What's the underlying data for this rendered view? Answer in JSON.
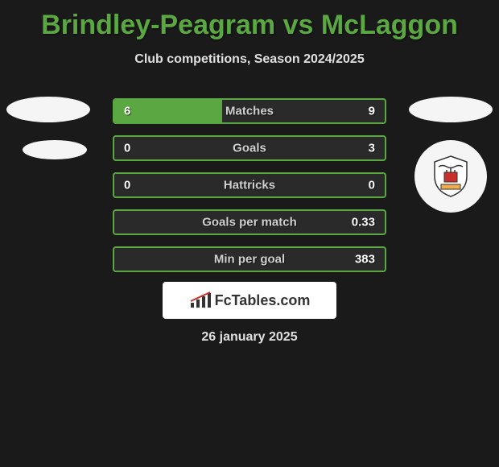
{
  "header": {
    "player1": "Brindley-Peagram",
    "player2": "McLaggon",
    "vs": "vs",
    "subtitle": "Club competitions, Season 2024/2025"
  },
  "stats": [
    {
      "label": "Matches",
      "left_value": "6",
      "right_value": "9",
      "left_pct": 40,
      "right_pct": 0
    },
    {
      "label": "Goals",
      "left_value": "0",
      "right_value": "3",
      "left_pct": 0,
      "right_pct": 0
    },
    {
      "label": "Hattricks",
      "left_value": "0",
      "right_value": "0",
      "left_pct": 0,
      "right_pct": 0
    },
    {
      "label": "Goals per match",
      "left_value": "",
      "right_value": "0.33",
      "left_pct": 0,
      "right_pct": 0
    },
    {
      "label": "Min per goal",
      "left_value": "",
      "right_value": "383",
      "left_pct": 0,
      "right_pct": 0
    }
  ],
  "colors": {
    "background": "#1a1a1a",
    "accent": "#5ba843",
    "bar_bg": "#2a2a2a",
    "text_light": "#e0e0e0",
    "text_white": "#ffffff",
    "text_label": "#d0d0d0"
  },
  "branding": {
    "text": "FcTables.com"
  },
  "date": "26 january 2025"
}
